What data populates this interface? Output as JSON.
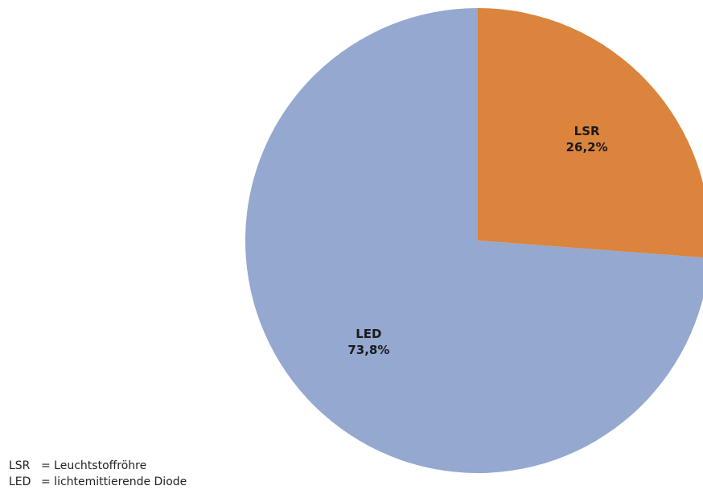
{
  "chart_data": {
    "type": "pie",
    "title": "",
    "start_angle_deg": 0,
    "direction": "clockwise",
    "slices": [
      {
        "label": "LSR",
        "value": 26.2,
        "value_text": "26,2%",
        "color": "#DA843E"
      },
      {
        "label": "LED",
        "value": 73.8,
        "value_text": "73,8%",
        "color": "#94A8D0"
      }
    ],
    "legend": "none",
    "data_labels": "inside"
  },
  "footnotes": [
    {
      "abbr": "LSR",
      "text": "= Leuchtstoffröhre"
    },
    {
      "abbr": "LED",
      "text": "= lichtemittierende Diode"
    }
  ]
}
